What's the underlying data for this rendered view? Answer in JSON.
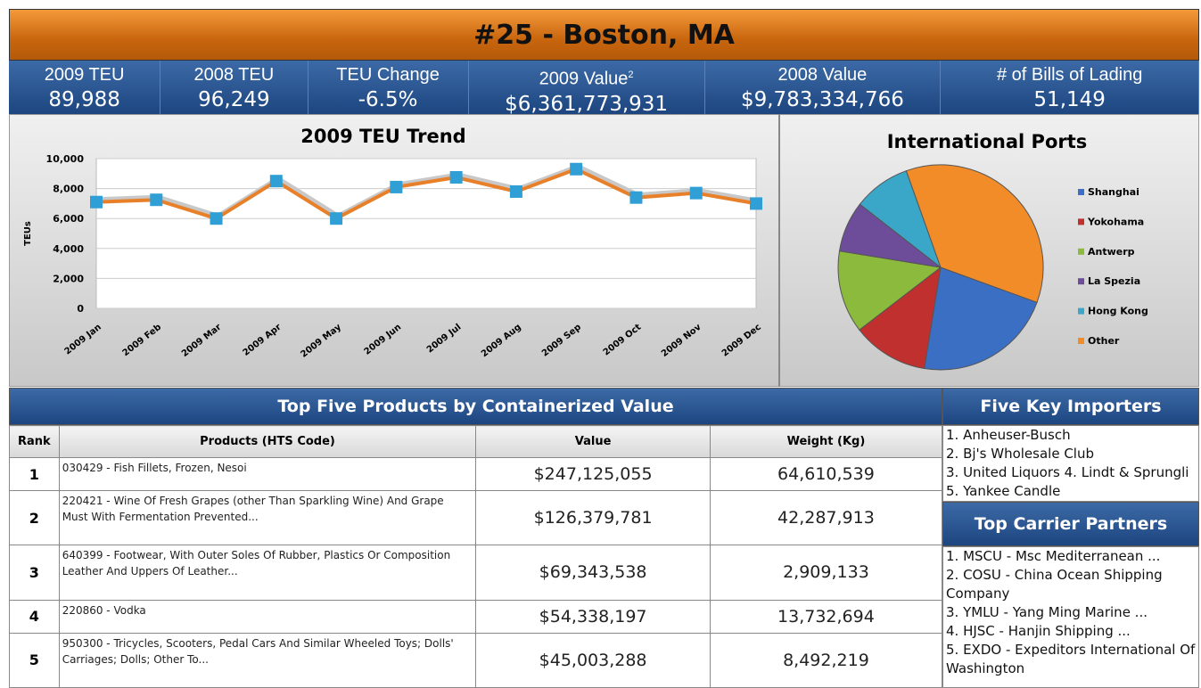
{
  "header": {
    "title": "#25 - Boston, MA"
  },
  "stats": [
    {
      "label": "2009 TEU",
      "value": "89,988"
    },
    {
      "label": "2008 TEU",
      "value": "96,249"
    },
    {
      "label": "TEU Change",
      "value": "-6.5%"
    },
    {
      "label": "2009 Value",
      "footnote": "2",
      "value": "$6,361,773,931"
    },
    {
      "label": "2008 Value",
      "value": "$9,783,334,766"
    },
    {
      "label": "# of Bills of Lading",
      "value": "51,149"
    }
  ],
  "chart_data": [
    {
      "type": "line",
      "title": "2009 TEU Trend",
      "y_label": "TEUs",
      "categories": [
        "2009 Jan",
        "2009 Feb",
        "2009 Mar",
        "2009 Apr",
        "2009 May",
        "2009 Jun",
        "2009 Jul",
        "2009 Aug",
        "2009 Sep",
        "2009 Oct",
        "2009 Nov",
        "2009 Dec"
      ],
      "values": [
        7100,
        7250,
        6000,
        8500,
        6000,
        8100,
        8750,
        7800,
        9300,
        7400,
        7700,
        7000
      ],
      "color": "#e8802a",
      "marker_color": "#2f9fd6",
      "ylim": [
        0,
        10000
      ],
      "yticks": [
        0,
        {
          "value": 2000,
          "label": "2,000"
        },
        {
          "value": 4000,
          "label": "4,000"
        },
        {
          "value": 6000,
          "label": "6,000"
        },
        {
          "value": 8000,
          "label": "8,000"
        },
        {
          "value": 10000,
          "label": "10,000"
        }
      ],
      "grid": true
    },
    {
      "type": "pie",
      "title": "International Ports",
      "categories": [
        "Shanghai",
        "Yokohama",
        "Antwerp",
        "La Spezia",
        "Hong Kong",
        "Other"
      ],
      "values": [
        22,
        12,
        13,
        8,
        9,
        36
      ],
      "colors": [
        "#3a6fc4",
        "#c0302e",
        "#8cba3c",
        "#6d4c9a",
        "#3aa6c8",
        "#f28c28"
      ],
      "legend": "right"
    }
  ],
  "products": {
    "title": "Top Five Products by Containerized Value",
    "columns": [
      "Rank",
      "Products (HTS Code)",
      "Value",
      "Weight (Kg)"
    ],
    "rows": [
      [
        "1",
        "030429 - Fish Fillets, Frozen, Nesoi",
        "$247,125,055",
        "64,610,539"
      ],
      [
        "2",
        "220421 - Wine Of Fresh Grapes (other Than Sparkling Wine) And Grape Must With Fermentation Prevented...",
        "$126,379,781",
        "42,287,913"
      ],
      [
        "3",
        "640399 - Footwear, With Outer Soles Of Rubber, Plastics Or Composition Leather And Uppers Of Leather...",
        "$69,343,538",
        "2,909,133"
      ],
      [
        "4",
        "220860 - Vodka",
        "$54,338,197",
        "13,732,694"
      ],
      [
        "5",
        "950300 - Tricycles, Scooters, Pedal Cars And Similar Wheeled Toys; Dolls' Carriages; Dolls; Other To...",
        "$45,003,288",
        "8,492,219"
      ]
    ]
  },
  "importers": {
    "title": "Five Key Importers",
    "items": [
      "1. Anheuser-Busch",
      "2. Bj's Wholesale Club",
      "3. United Liquors",
      "4. Lindt & Sprungli",
      "5. Yankee Candle"
    ]
  },
  "carriers": {
    "title": "Top Carrier Partners",
    "items": [
      "1. MSCU - Msc Mediterranean ...",
      "2. COSU - China Ocean Shipping Company",
      "3. YMLU - Yang Ming Marine ...",
      "4. HJSC - Hanjin Shipping ...",
      "5. EXDO - Expeditors International Of Washington"
    ]
  }
}
